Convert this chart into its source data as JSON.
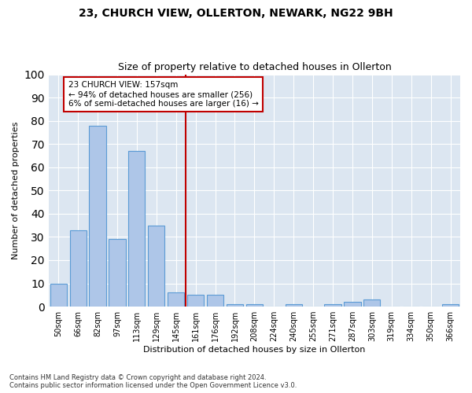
{
  "title1": "23, CHURCH VIEW, OLLERTON, NEWARK, NG22 9BH",
  "title2": "Size of property relative to detached houses in Ollerton",
  "xlabel": "Distribution of detached houses by size in Ollerton",
  "ylabel": "Number of detached properties",
  "categories": [
    "50sqm",
    "66sqm",
    "82sqm",
    "97sqm",
    "113sqm",
    "129sqm",
    "145sqm",
    "161sqm",
    "176sqm",
    "192sqm",
    "208sqm",
    "224sqm",
    "240sqm",
    "255sqm",
    "271sqm",
    "287sqm",
    "303sqm",
    "319sqm",
    "334sqm",
    "350sqm",
    "366sqm"
  ],
  "values": [
    10,
    33,
    78,
    29,
    67,
    35,
    6,
    5,
    5,
    1,
    1,
    0,
    1,
    0,
    1,
    2,
    3,
    0,
    0,
    0,
    1
  ],
  "bar_color": "#aec6e8",
  "bar_edge_color": "#5b9bd5",
  "vline_index": 7,
  "vline_color": "#c00000",
  "annotation_text": "23 CHURCH VIEW: 157sqm\n← 94% of detached houses are smaller (256)\n6% of semi-detached houses are larger (16) →",
  "annotation_box_color": "#ffffff",
  "annotation_box_edge": "#c00000",
  "ylim": [
    0,
    100
  ],
  "background_color": "#dce6f1",
  "footnote1": "Contains HM Land Registry data © Crown copyright and database right 2024.",
  "footnote2": "Contains public sector information licensed under the Open Government Licence v3.0."
}
